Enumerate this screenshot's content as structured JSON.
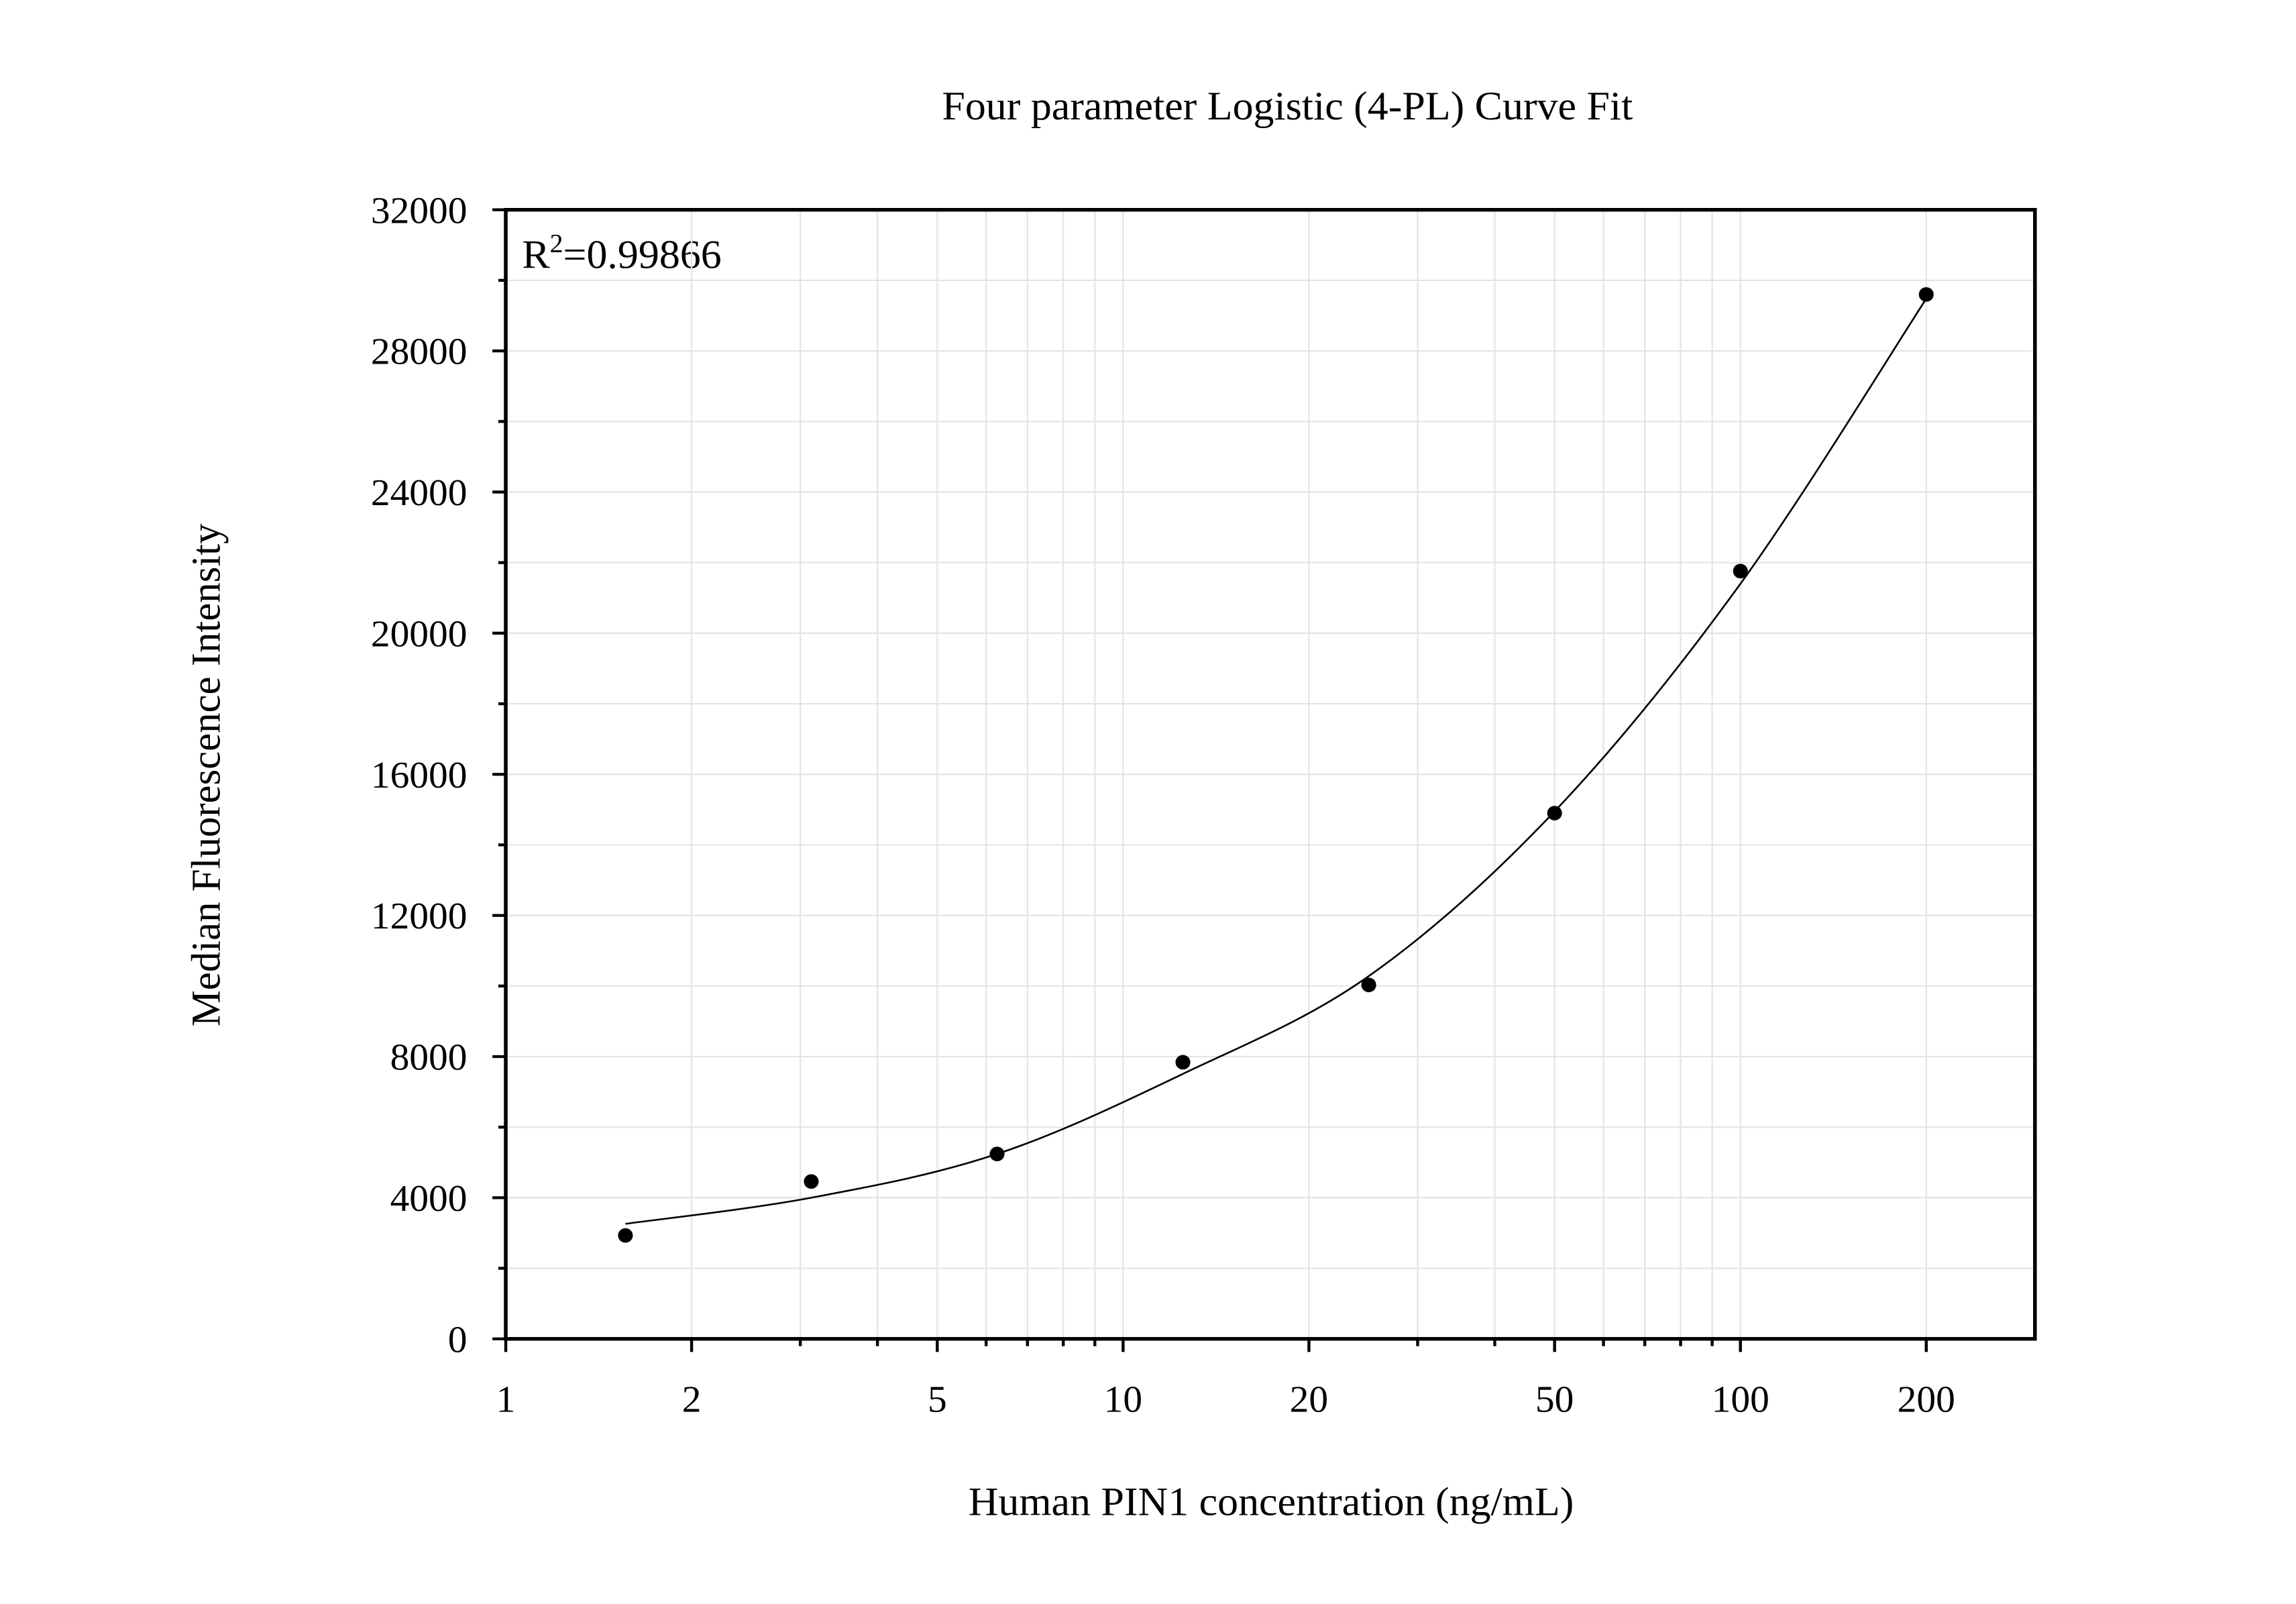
{
  "chart_data": {
    "type": "scatter",
    "title": "Four parameter Logistic (4-PL) Curve Fit",
    "x_label": "Human PIN1 concentration (ng/mL)",
    "y_label": "Median Fluorescence Intensity",
    "annotation": {
      "base": "R",
      "sup": "2",
      "text": "=0.99866"
    },
    "x_scale": "log",
    "xlim": [
      1,
      300
    ],
    "xticks": [
      1,
      2,
      5,
      10,
      20,
      50,
      100,
      200
    ],
    "xminorticks": [
      3,
      4,
      6,
      7,
      8,
      9,
      30,
      40,
      60,
      70,
      80,
      90
    ],
    "ylim": [
      0,
      32000
    ],
    "yticks": [
      0,
      4000,
      8000,
      12000,
      16000,
      20000,
      24000,
      28000,
      32000
    ],
    "yminorticks": [
      2000,
      6000,
      10000,
      14000,
      18000,
      22000,
      26000,
      30000
    ],
    "grid": true,
    "points": {
      "color": "#000000",
      "x": [
        1.5625,
        3.125,
        6.25,
        12.5,
        25,
        50,
        100,
        200
      ],
      "values": [
        2930,
        4460,
        5240,
        7840,
        10030,
        14900,
        21760,
        29600
      ]
    },
    "fit": {
      "color": "#000000",
      "x": [
        1.5625,
        3.125,
        6.25,
        12.5,
        25,
        50,
        100,
        200
      ],
      "values": [
        3260,
        4000,
        5240,
        7510,
        10280,
        14950,
        21400,
        29480
      ]
    }
  }
}
